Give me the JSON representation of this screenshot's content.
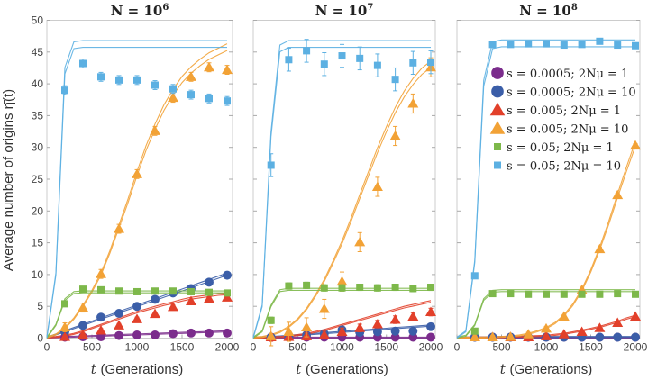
{
  "chart_data": {
    "type": "line+scatter",
    "ylabel": "Average number of origins  η̄(t)",
    "xlabel_var": "t",
    "xlabel_unit": "(Generations)",
    "xlim": [
      0,
      2000
    ],
    "ylim": [
      0,
      50
    ],
    "xticks": [
      "0",
      "500",
      "1000",
      "1500",
      "2000"
    ],
    "yticks": [
      "0",
      "5",
      "10",
      "15",
      "20",
      "25",
      "30",
      "35",
      "40",
      "45",
      "50"
    ],
    "legend_position": "right panel, upper-right",
    "x": [
      200,
      400,
      600,
      800,
      1000,
      1200,
      1400,
      1600,
      1800,
      2000
    ],
    "theory_x_step": 100,
    "series_meta": [
      {
        "id": "s0005_1",
        "label": "s = 0.0005; 2Nμ = 1",
        "marker": "circle",
        "color": "#7b2c8c"
      },
      {
        "id": "s0005_10",
        "label": "s = 0.0005; 2Nμ = 10",
        "marker": "circle",
        "color": "#3b5ea8"
      },
      {
        "id": "s005_1",
        "label": "s = 0.005; 2Nμ = 1",
        "marker": "triangle",
        "color": "#e2402a"
      },
      {
        "id": "s005_10",
        "label": "s = 0.005; 2Nμ = 10",
        "marker": "triangle",
        "color": "#f2a236"
      },
      {
        "id": "s05_1",
        "label": "s = 0.05; 2Nμ = 1",
        "marker": "square",
        "color": "#7db84a"
      },
      {
        "id": "s05_10",
        "label": "s = 0.05; 2Nμ = 10",
        "marker": "square",
        "color": "#5cb0e2"
      }
    ],
    "panels": [
      {
        "title": "N = 10",
        "title_exp": "6",
        "series": [
          {
            "values": [
              0.1,
              0.2,
              0.2,
              0.4,
              0.5,
              0.5,
              0.7,
              0.8,
              0.8,
              0.8
            ],
            "err": 0.2,
            "theory": [
              0,
              0.05,
              0.1,
              0.15,
              0.2,
              0.25,
              0.3,
              0.35,
              0.4,
              0.45,
              0.5,
              0.55,
              0.6,
              0.65,
              0.7,
              0.75,
              0.8,
              0.85,
              0.9,
              0.95,
              1.0
            ]
          },
          {
            "values": [
              1.0,
              2.0,
              3.3,
              3.9,
              5.0,
              6.1,
              7.1,
              7.8,
              8.8,
              9.9
            ],
            "err": 0.3,
            "theory": [
              0,
              0.5,
              1,
              1.5,
              2,
              2.5,
              3,
              3.5,
              4,
              4.5,
              5,
              5.5,
              6,
              6.5,
              7,
              7.5,
              8,
              8.5,
              9,
              9.5,
              10
            ]
          },
          {
            "values": [
              0.2,
              0.5,
              1.2,
              2.0,
              3.0,
              3.8,
              4.9,
              5.8,
              6.2,
              6.4
            ],
            "err": 0.3,
            "theory": [
              0,
              0.1,
              0.3,
              0.6,
              1,
              1.5,
              2,
              2.5,
              3,
              3.5,
              4,
              4.4,
              4.8,
              5.2,
              5.5,
              5.9,
              6.2,
              6.4,
              6.6,
              6.8,
              6.9
            ]
          },
          {
            "values": [
              1.7,
              4.8,
              10.1,
              17.2,
              25.8,
              32.6,
              37.8,
              41.1,
              42.6,
              42.2
            ],
            "err": 0.7,
            "theory": [
              0,
              0.5,
              1.5,
              3,
              5,
              7.3,
              10,
              13.5,
              17.5,
              21.5,
              25.8,
              29.8,
              33.2,
              36.2,
              38.6,
              40.6,
              42.1,
              43.3,
              44.3,
              45,
              45.7
            ]
          },
          {
            "values": [
              5.4,
              7.7,
              7.6,
              7.4,
              7.3,
              7.4,
              7.4,
              7.3,
              7.2,
              7.1
            ],
            "err": 0.3,
            "theory": [
              0,
              2,
              6,
              7.1,
              7.2,
              7.2,
              7.2,
              7.2,
              7.2,
              7.2,
              7.2,
              7.2,
              7.2,
              7.2,
              7.2,
              7.2,
              7.2,
              7.2,
              7.2,
              7.2,
              7.2
            ]
          },
          {
            "values": [
              39.0,
              43.2,
              41.1,
              40.6,
              40.6,
              39.8,
              39.2,
              38.3,
              37.7,
              37.3
            ],
            "err": 0.7,
            "theory": [
              0,
              10,
              42,
              46,
              46.2,
              46.2,
              46.2,
              46.2,
              46.2,
              46.2,
              46.2,
              46.2,
              46.2,
              46.2,
              46.2,
              46.2,
              46.2,
              46.2,
              46.2,
              46.2,
              46.2
            ]
          }
        ]
      },
      {
        "title": "N = 10",
        "title_exp": "7",
        "series": [
          {
            "values": [
              0.05,
              0.05,
              0.05,
              0.05,
              0.05,
              0.05,
              0.05,
              0.05,
              0.05,
              0.05
            ],
            "err": 0.1,
            "theory": [
              0,
              0,
              0,
              0,
              0,
              0,
              0,
              0,
              0,
              0,
              0,
              0,
              0,
              0,
              0,
              0,
              0,
              0,
              0,
              0,
              0
            ]
          },
          {
            "values": [
              0.05,
              0.2,
              0.5,
              0.7,
              1.3,
              0.9,
              1.0,
              1.1,
              1.1,
              1.8
            ],
            "err": 0.3,
            "theory": [
              0,
              0.05,
              0.1,
              0.2,
              0.3,
              0.4,
              0.5,
              0.6,
              0.7,
              0.8,
              0.9,
              1.0,
              1.1,
              1.2,
              1.3,
              1.4,
              1.5,
              1.6,
              1.7,
              1.8,
              1.9
            ]
          },
          {
            "values": [
              0.1,
              0.2,
              0.3,
              0.5,
              1.0,
              1.6,
              2.2,
              2.9,
              3.4,
              4.1
            ],
            "err": 0.6,
            "theory": [
              0,
              0,
              0.05,
              0.1,
              0.2,
              0.4,
              0.6,
              0.9,
              1.2,
              1.6,
              2,
              2.4,
              2.8,
              3.2,
              3.6,
              4,
              4.4,
              4.8,
              5.1,
              5.4,
              5.7
            ]
          },
          {
            "values": [
              0.3,
              1.0,
              1.7,
              4.6,
              8.9,
              15.1,
              23.8,
              31.8,
              36.9,
              42.6
            ],
            "err": 1.5,
            "theory": [
              0,
              0.1,
              0.4,
              0.9,
              1.7,
              2.9,
              4.5,
              6.6,
              9,
              11.9,
              15,
              18.5,
              22.2,
              25.9,
              29.5,
              32.8,
              35.8,
              38.3,
              40.3,
              41.9,
              43
            ]
          },
          {
            "values": [
              2.8,
              8.2,
              8.3,
              7.9,
              7.9,
              8.0,
              7.9,
              8.0,
              7.8,
              8.0
            ],
            "err": 0.5,
            "theory": [
              0,
              1,
              5,
              7.4,
              7.6,
              7.6,
              7.6,
              7.6,
              7.6,
              7.6,
              7.6,
              7.6,
              7.6,
              7.6,
              7.6,
              7.6,
              7.6,
              7.6,
              7.6,
              7.6,
              7.6
            ]
          },
          {
            "values": [
              27.2,
              43.8,
              45.2,
              43.1,
              44.4,
              44.0,
              42.9,
              40.7,
              43.3,
              43.4
            ],
            "err": 1.8,
            "theory": [
              0,
              5,
              32,
              45.5,
              46.2,
              46.2,
              46.2,
              46.2,
              46.2,
              46.2,
              46.2,
              46.2,
              46.2,
              46.2,
              46.2,
              46.2,
              46.2,
              46.2,
              46.2,
              46.2,
              46.2
            ]
          }
        ]
      },
      {
        "title": "N = 10",
        "title_exp": "8",
        "series": [
          {
            "values": [
              0.05,
              0.05,
              0.05,
              0.05,
              0.05,
              0.05,
              0.05,
              0.05,
              0.05,
              0.05
            ],
            "err": 0.1,
            "theory": [
              0,
              0,
              0,
              0,
              0,
              0,
              0,
              0,
              0,
              0,
              0,
              0,
              0,
              0,
              0,
              0,
              0,
              0,
              0,
              0,
              0
            ]
          },
          {
            "values": [
              0.1,
              0.1,
              0.1,
              0.1,
              0.1,
              0.1,
              0.1,
              0.1,
              0.1,
              0.1
            ],
            "err": 0.1,
            "theory": [
              0,
              0.02,
              0.04,
              0.06,
              0.08,
              0.1,
              0.1,
              0.1,
              0.1,
              0.1,
              0.1,
              0.1,
              0.1,
              0.1,
              0.1,
              0.1,
              0.1,
              0.1,
              0.1,
              0.1,
              0.1
            ]
          },
          {
            "values": [
              0,
              0.05,
              0.1,
              0.15,
              0.3,
              0.6,
              1.0,
              1.6,
              2.4,
              3.4
            ],
            "err": 0.2,
            "theory": [
              0,
              0,
              0,
              0.02,
              0.05,
              0.08,
              0.12,
              0.16,
              0.2,
              0.25,
              0.3,
              0.45,
              0.6,
              0.85,
              1.1,
              1.4,
              1.7,
              2.1,
              2.5,
              3.0,
              3.4
            ]
          },
          {
            "values": [
              0.05,
              0.1,
              0.2,
              0.6,
              1.5,
              3.4,
              7.6,
              14.0,
              22.5,
              30.3
            ],
            "err": 0.3,
            "theory": [
              0,
              0,
              0.01,
              0.02,
              0.05,
              0.1,
              0.2,
              0.35,
              0.6,
              1.0,
              1.5,
              2.3,
              3.5,
              5.2,
              7.5,
              10.5,
              14,
              18,
              22.3,
              26.5,
              30.5
            ]
          },
          {
            "values": [
              1.1,
              7.0,
              7.0,
              6.9,
              6.9,
              6.9,
              6.9,
              6.9,
              7.0,
              6.9
            ],
            "err": 0.3,
            "theory": [
              0,
              0.3,
              2,
              6,
              7.3,
              7.4,
              7.4,
              7.4,
              7.4,
              7.4,
              7.4,
              7.4,
              7.4,
              7.4,
              7.4,
              7.4,
              7.4,
              7.4,
              7.4,
              7.4,
              7.4
            ]
          },
          {
            "values": [
              9.8,
              46.2,
              46.2,
              46.3,
              46.3,
              46.1,
              46.2,
              46.7,
              46.1,
              46.0
            ],
            "err": 0.4,
            "theory": [
              0,
              1,
              12,
              40,
              46,
              46.3,
              46.3,
              46.3,
              46.3,
              46.3,
              46.3,
              46.3,
              46.3,
              46.3,
              46.3,
              46.3,
              46.3,
              46.3,
              46.3,
              46.3,
              46.3
            ]
          }
        ]
      }
    ]
  }
}
